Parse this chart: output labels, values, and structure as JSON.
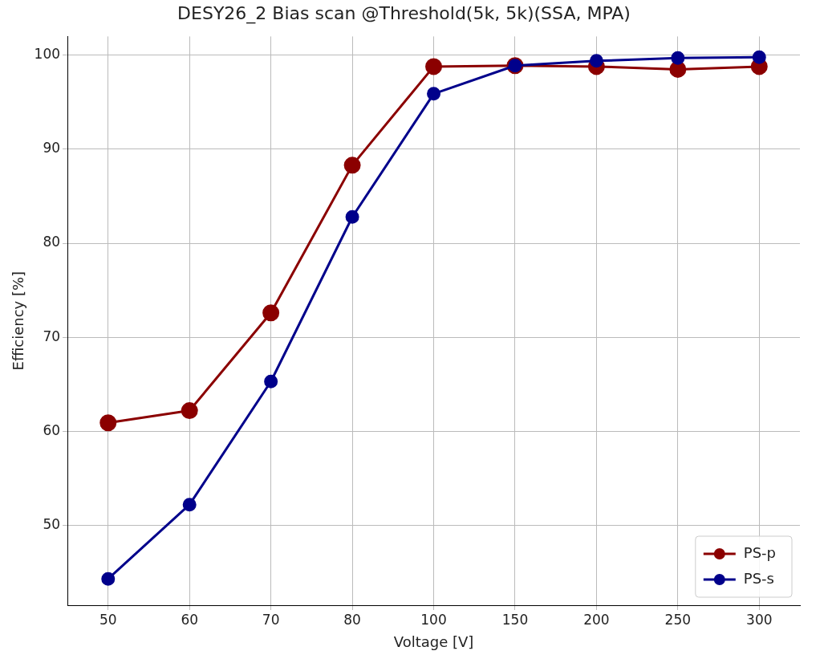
{
  "chart_data": {
    "type": "line",
    "title": "DESY26_2 Bias scan @Threshold(5k, 5k)(SSA, MPA)",
    "xlabel": "Voltage [V]",
    "ylabel": "Efficiency [%]",
    "categories": [
      "50",
      "60",
      "70",
      "80",
      "100",
      "150",
      "200",
      "250",
      "300"
    ],
    "series": [
      {
        "name": "PS-p",
        "color": "#8b0000",
        "values": [
          60.9,
          62.2,
          72.6,
          88.3,
          98.8,
          98.9,
          98.8,
          98.5,
          98.8
        ]
      },
      {
        "name": "PS-s",
        "color": "#00008b",
        "values": [
          44.3,
          52.2,
          65.3,
          82.8,
          95.9,
          98.9,
          99.4,
          99.7,
          99.8
        ]
      }
    ],
    "ylim": [
      41.5,
      102
    ],
    "yticks": [
      50,
      60,
      70,
      80,
      90,
      100
    ],
    "grid": true,
    "legend": "bottom right",
    "marker": "circle",
    "line_style": "solid"
  }
}
